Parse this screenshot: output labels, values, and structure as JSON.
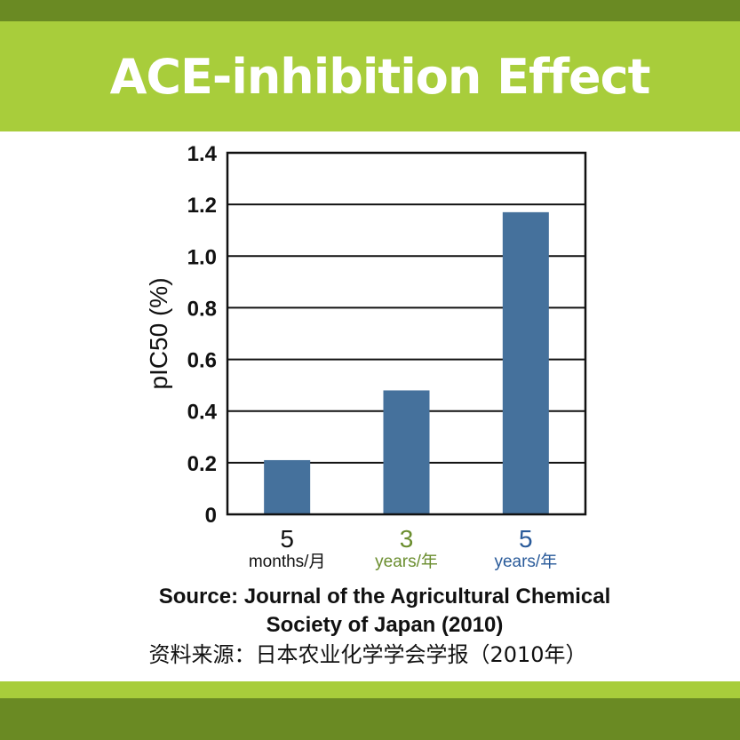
{
  "colors": {
    "dark_green": "#6a8a23",
    "light_green": "#a8cd3b",
    "bar": "#45719c",
    "cat1": "#111111",
    "cat2": "#6b8e2f",
    "cat3": "#2a5b9a"
  },
  "header": {
    "title": "ACE-inhibition Effect"
  },
  "chart_data": {
    "type": "bar",
    "ylabel": "pIC50 (%)",
    "ylim": [
      0,
      1.4
    ],
    "yticks": [
      "0",
      "0.2",
      "0.4",
      "0.6",
      "0.8",
      "1.0",
      "1.2",
      "1.4"
    ],
    "grid": true,
    "categories": [
      {
        "number": "5",
        "unit": "months/月"
      },
      {
        "number": "3",
        "unit": "years/年"
      },
      {
        "number": "5",
        "unit": "years/年"
      }
    ],
    "values": [
      0.21,
      0.48,
      1.17
    ]
  },
  "source": {
    "line1": "Source: Journal of the Agricultural Chemical",
    "line2": "Society of Japan (2010)",
    "line3": "资料来源：日本农业化学学会学报（2010年）"
  }
}
